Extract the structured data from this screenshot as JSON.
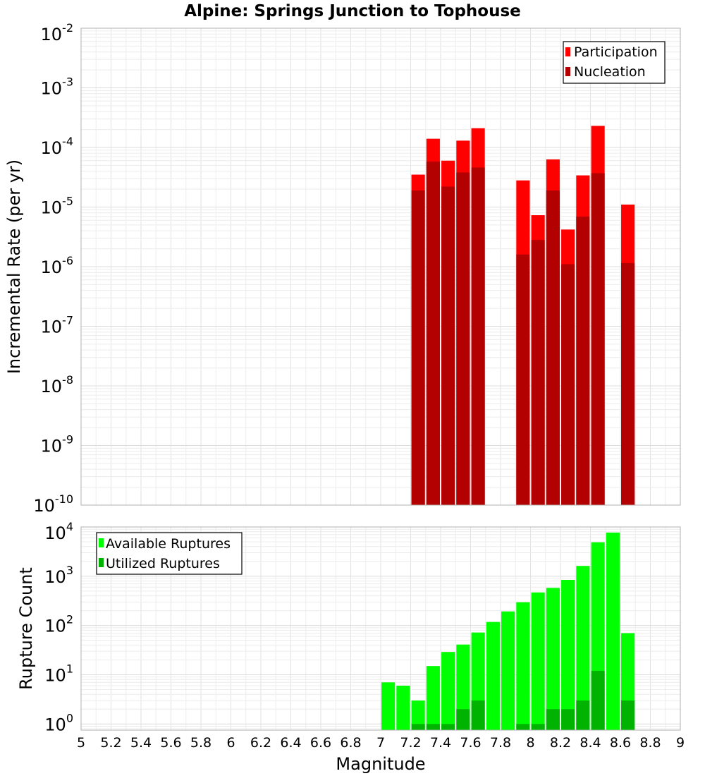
{
  "chart_data": [
    {
      "type": "bar",
      "title": "Alpine: Springs Junction to Tophouse",
      "xlabel": "",
      "ylabel": "Incremental Rate (per yr)",
      "xlim": [
        5,
        9
      ],
      "ylim": [
        1e-10,
        0.01
      ],
      "y_scale": "log",
      "grid": true,
      "legend_position": "top-right",
      "bar_width": 0.09,
      "series": [
        {
          "name": "Participation",
          "color": "#ff0000",
          "x": [
            7.25,
            7.35,
            7.45,
            7.55,
            7.65,
            7.95,
            8.05,
            8.15,
            8.25,
            8.35,
            8.45,
            8.65
          ],
          "values": [
            3.5e-05,
            0.00014,
            6e-05,
            0.00013,
            0.00021,
            2.8e-05,
            7.3e-06,
            6.3e-05,
            4.2e-06,
            3.4e-05,
            0.00023,
            1.1e-05
          ]
        },
        {
          "name": "Nucleation",
          "color": "#b30000",
          "x": [
            7.25,
            7.35,
            7.45,
            7.55,
            7.65,
            7.95,
            8.05,
            8.15,
            8.25,
            8.35,
            8.45,
            8.65
          ],
          "values": [
            1.9e-05,
            5.8e-05,
            2.2e-05,
            3.8e-05,
            4.6e-05,
            1.6e-06,
            2.8e-06,
            1.9e-05,
            1.1e-06,
            6.9e-06,
            3.7e-05,
            1.15e-06
          ]
        }
      ],
      "y_ticks": [
        {
          "base": "10",
          "exp": "-10"
        },
        {
          "base": "10",
          "exp": "-9"
        },
        {
          "base": "10",
          "exp": "-8"
        },
        {
          "base": "10",
          "exp": "-7"
        },
        {
          "base": "10",
          "exp": "-6"
        },
        {
          "base": "10",
          "exp": "-5"
        },
        {
          "base": "10",
          "exp": "-4"
        },
        {
          "base": "10",
          "exp": "-3"
        },
        {
          "base": "10",
          "exp": "-2"
        }
      ]
    },
    {
      "type": "bar",
      "title": "",
      "xlabel": "Magnitude",
      "ylabel": "Rupture Count",
      "xlim": [
        5,
        9
      ],
      "ylim": [
        0.75,
        10000
      ],
      "y_scale": "log",
      "grid": true,
      "legend_position": "top-left",
      "bar_width": 0.09,
      "series": [
        {
          "name": "Available Ruptures",
          "color": "#00ff00",
          "x": [
            7.05,
            7.15,
            7.25,
            7.35,
            7.45,
            7.55,
            7.65,
            7.75,
            7.85,
            7.95,
            8.05,
            8.15,
            8.25,
            8.35,
            8.45,
            8.55,
            8.65
          ],
          "values": [
            7,
            6,
            3,
            15,
            29,
            41,
            72,
            118,
            193,
            297,
            469,
            580,
            843,
            1620,
            4900,
            7700,
            70
          ]
        },
        {
          "name": "Utilized Ruptures",
          "color": "#00b300",
          "x": [
            7.25,
            7.35,
            7.45,
            7.55,
            7.65,
            7.95,
            8.05,
            8.15,
            8.25,
            8.35,
            8.45,
            8.65
          ],
          "values": [
            1,
            1,
            1,
            2,
            3,
            1,
            1,
            2,
            2,
            3,
            12,
            3
          ]
        }
      ],
      "y_ticks": [
        {
          "base": "10",
          "exp": "0"
        },
        {
          "base": "10",
          "exp": "1"
        },
        {
          "base": "10",
          "exp": "2"
        },
        {
          "base": "10",
          "exp": "3"
        },
        {
          "base": "10",
          "exp": "4"
        }
      ],
      "x_ticks": [
        "5",
        "5.2",
        "5.4",
        "5.6",
        "5.8",
        "6",
        "6.2",
        "6.4",
        "6.6",
        "6.8",
        "7",
        "7.2",
        "7.4",
        "7.6",
        "7.8",
        "8",
        "8.2",
        "8.4",
        "8.6",
        "8.8",
        "9"
      ]
    }
  ]
}
